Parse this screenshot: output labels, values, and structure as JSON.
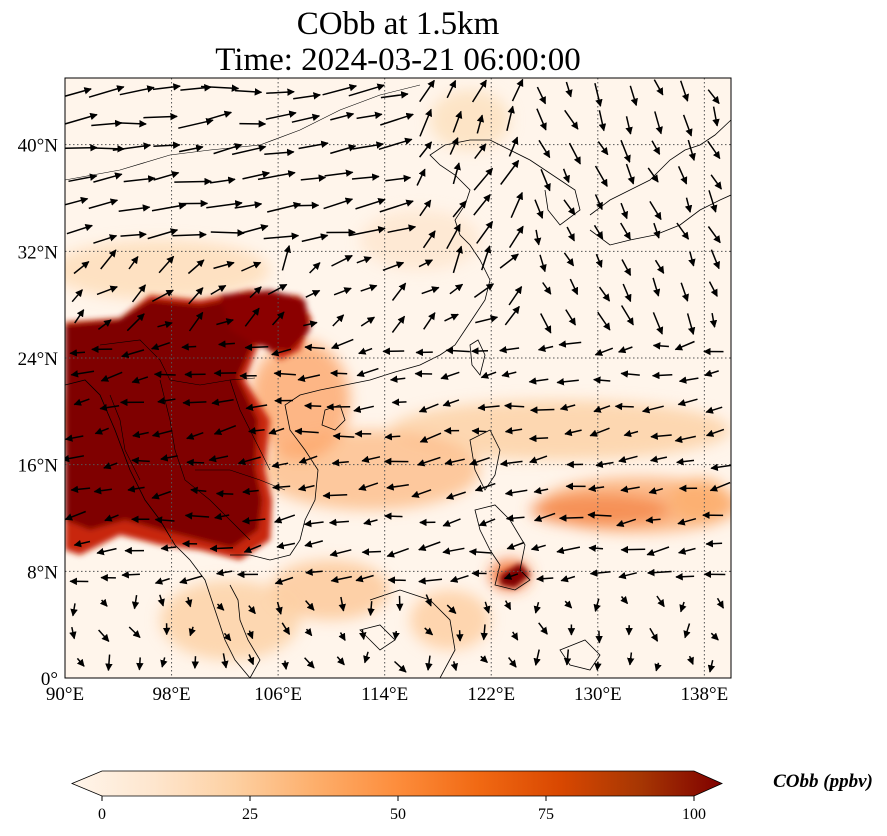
{
  "title": {
    "line1": "CObb at 1.5km",
    "line2": "Time: 2024-03-21 06:00:00"
  },
  "map": {
    "extent": {
      "lon": [
        90,
        140
      ],
      "lat": [
        0,
        45
      ]
    },
    "x_ticks": [
      {
        "lon": 90,
        "label": "90°E"
      },
      {
        "lon": 98,
        "label": "98°E"
      },
      {
        "lon": 106,
        "label": "106°E"
      },
      {
        "lon": 114,
        "label": "114°E"
      },
      {
        "lon": 122,
        "label": "122°E"
      },
      {
        "lon": 130,
        "label": "130°E"
      },
      {
        "lon": 138,
        "label": "138°E"
      }
    ],
    "y_ticks": [
      {
        "lat": 0,
        "label": "0°"
      },
      {
        "lat": 8,
        "label": "8°N"
      },
      {
        "lat": 16,
        "label": "16°N"
      },
      {
        "lat": 24,
        "label": "24°N"
      },
      {
        "lat": 32,
        "label": "32°N"
      },
      {
        "lat": 40,
        "label": "40°N"
      }
    ],
    "gridlines": true,
    "field": "CObb concentration (filled contours)",
    "vectors": "wind at 1.5km"
  },
  "colorbar": {
    "label": "CObb (ppbv)",
    "cmap": [
      "#fff5eb",
      "#fee6ce",
      "#fdd0a2",
      "#fdae6b",
      "#fd8d3c",
      "#f16913",
      "#d94801",
      "#a63603",
      "#7f0000"
    ],
    "range": [
      0,
      100
    ],
    "ticks": [
      {
        "value": 0,
        "label": "0"
      },
      {
        "value": 25,
        "label": "25"
      },
      {
        "value": 50,
        "label": "50"
      },
      {
        "value": 75,
        "label": "75"
      },
      {
        "value": 100,
        "label": "100"
      }
    ],
    "extend": "both"
  }
}
